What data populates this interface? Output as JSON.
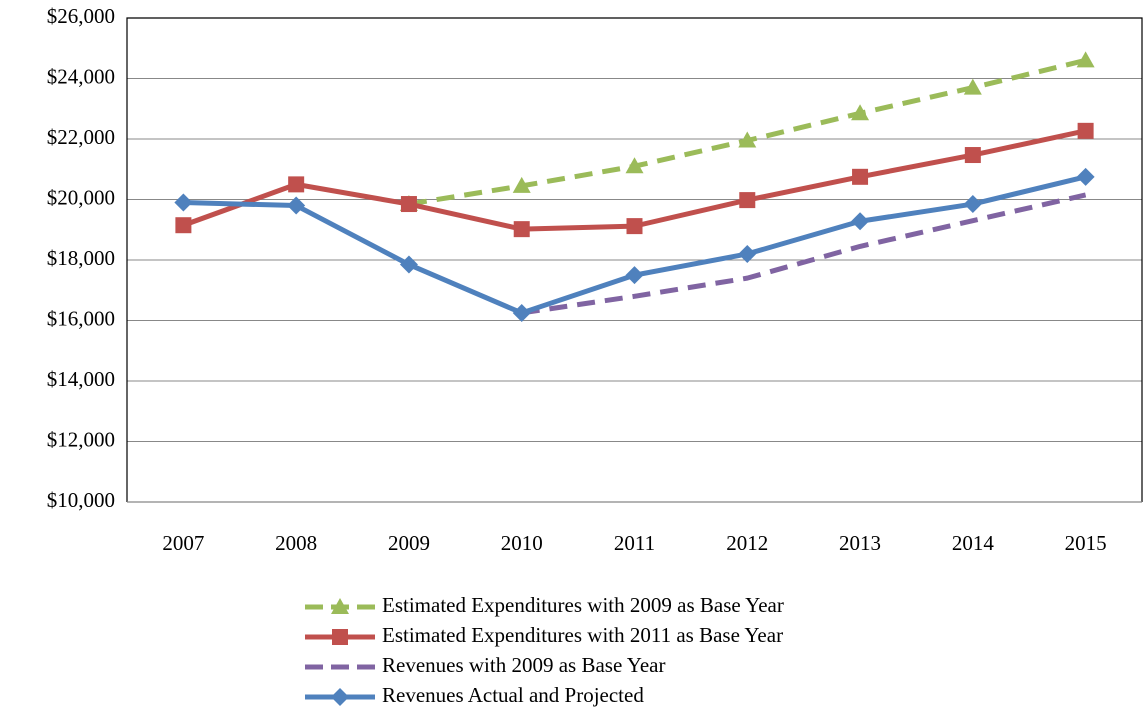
{
  "chart_data": {
    "type": "line",
    "categories": [
      "2007",
      "2008",
      "2009",
      "2010",
      "2011",
      "2012",
      "2013",
      "2014",
      "2015"
    ],
    "series": [
      {
        "name": "Estimated Expenditures with 2009 as Base Year",
        "color": "#9bbb59",
        "dashed": true,
        "marker": "triangle",
        "values": [
          null,
          null,
          19850,
          20450,
          21100,
          21950,
          22850,
          23700,
          24600
        ]
      },
      {
        "name": "Estimated Expenditures with 2011 as Base Year",
        "color": "#c0504d",
        "dashed": false,
        "marker": "square",
        "values": [
          19150,
          20500,
          19850,
          19020,
          19120,
          19980,
          20750,
          21470,
          22270
        ]
      },
      {
        "name": "Revenues with 2009 as Base Year",
        "color": "#8064a2",
        "dashed": true,
        "marker": "none",
        "values": [
          null,
          null,
          null,
          16250,
          16800,
          17400,
          18450,
          19300,
          20150
        ]
      },
      {
        "name": "Revenues Actual and Projected",
        "color": "#4f81bd",
        "dashed": false,
        "marker": "diamond",
        "values": [
          19900,
          19800,
          17850,
          16250,
          17500,
          18200,
          19280,
          19850,
          20750
        ]
      }
    ],
    "ylim": [
      10000,
      26000
    ],
    "yticks": [
      {
        "value": 10000,
        "label": "$10,000"
      },
      {
        "value": 12000,
        "label": "$12,000"
      },
      {
        "value": 14000,
        "label": "$14,000"
      },
      {
        "value": 16000,
        "label": "$16,000"
      },
      {
        "value": 18000,
        "label": "$18,000"
      },
      {
        "value": 20000,
        "label": "$20,000"
      },
      {
        "value": 22000,
        "label": "$22,000"
      },
      {
        "value": 24000,
        "label": "$24,000"
      },
      {
        "value": 26000,
        "label": "$26,000"
      }
    ],
    "grid": true,
    "legend": "bottom"
  }
}
